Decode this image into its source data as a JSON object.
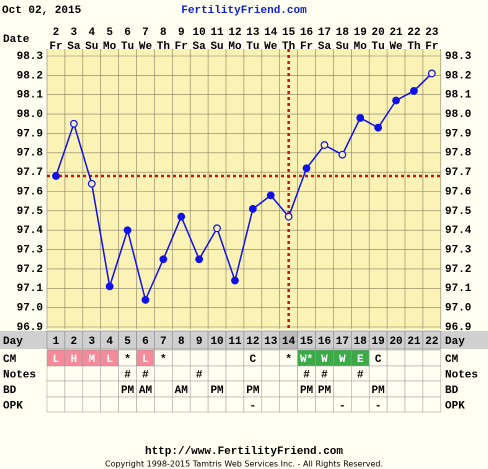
{
  "chart_data": {
    "type": "line",
    "title": "Oct 02, 2015",
    "site": "FertilityFriend.com",
    "date_label": "Date",
    "dates": [
      2,
      3,
      4,
      5,
      6,
      7,
      8,
      9,
      10,
      11,
      12,
      13,
      14,
      15,
      16,
      17,
      18,
      19,
      20,
      21,
      22,
      23
    ],
    "weekdays": [
      "Fr",
      "Sa",
      "Su",
      "Mo",
      "Tu",
      "We",
      "Th",
      "Fr",
      "Sa",
      "Su",
      "Mo",
      "Tu",
      "We",
      "Th",
      "Fr",
      "Sa",
      "Su",
      "Mo",
      "Tu",
      "We",
      "Th",
      "Fr"
    ],
    "day_label": "Day",
    "categories": [
      1,
      2,
      3,
      4,
      5,
      6,
      7,
      8,
      9,
      10,
      11,
      12,
      13,
      14,
      15,
      16,
      17,
      18,
      19,
      20,
      21,
      22
    ],
    "series": [
      {
        "color": "#1010e8",
        "values": [
          97.68,
          97.95,
          97.64,
          97.11,
          97.4,
          97.04,
          97.25,
          97.47,
          97.25,
          97.41,
          97.14,
          97.51,
          97.58,
          97.47,
          97.72,
          97.84,
          97.79,
          97.98,
          97.93,
          98.07,
          98.12,
          98.21
        ],
        "open_points": [
          false,
          true,
          true,
          false,
          false,
          false,
          false,
          false,
          false,
          true,
          false,
          false,
          false,
          true,
          false,
          true,
          true,
          false,
          false,
          false,
          false,
          true
        ]
      }
    ],
    "ylim": [
      96.9,
      98.3
    ],
    "yticks": [
      96.9,
      {
        "value": 97,
        "label": "97.0"
      },
      97.1,
      97.2,
      97.3,
      97.4,
      97.5,
      97.6,
      97.7,
      97.8,
      97.9,
      {
        "value": 98,
        "label": "98.0"
      },
      98.1,
      98.2,
      98.3
    ],
    "grid": true,
    "coverline": 97.68,
    "ovulation_day": 14,
    "reference_color": "#d01010",
    "rows": [
      {
        "label": "CM",
        "cells": [
          "L",
          "H",
          "M",
          "L",
          "*",
          "L",
          "*",
          null,
          null,
          null,
          null,
          "C",
          null,
          "*",
          "W*",
          "W",
          "W",
          "E",
          "C",
          null,
          null,
          null
        ],
        "colors": [
          "#f48a9a",
          "#f48a9a",
          "#f48a9a",
          "#f48a9a",
          null,
          "#f48a9a",
          null,
          null,
          null,
          null,
          null,
          null,
          null,
          null,
          "#3daa4a",
          "#3daa4a",
          "#3daa4a",
          "#3daa4a",
          null,
          null,
          null,
          null
        ]
      },
      {
        "label": "Notes",
        "cells": [
          null,
          null,
          null,
          null,
          "#",
          "#",
          null,
          null,
          "#",
          null,
          null,
          null,
          null,
          null,
          "#",
          "#",
          null,
          "#",
          null,
          null,
          null,
          null
        ]
      },
      {
        "label": "BD",
        "cells": [
          null,
          null,
          null,
          null,
          "PM",
          "AM",
          null,
          "AM",
          null,
          "PM",
          null,
          "PM",
          null,
          null,
          "PM",
          "PM",
          null,
          null,
          "PM",
          null,
          null,
          null
        ]
      },
      {
        "label": "OPK",
        "cells": [
          null,
          null,
          null,
          null,
          null,
          null,
          null,
          null,
          null,
          null,
          null,
          "-",
          null,
          null,
          null,
          null,
          "-",
          null,
          "-",
          null,
          null,
          null
        ]
      }
    ],
    "url": "http://www.FertilityFriend.com",
    "copyright": "Copyright 1998-2015 Tamtris Web Services Inc. - All Rights Reserved."
  }
}
